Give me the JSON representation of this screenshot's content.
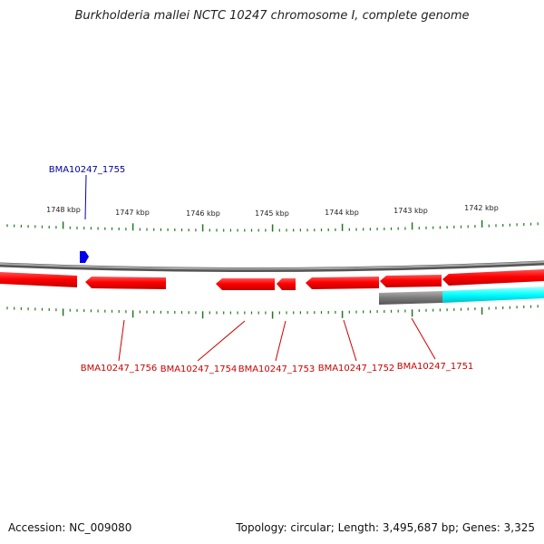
{
  "title": "Burkholderia mallei NCTC 10247 chromosome I, complete genome",
  "footer": {
    "accession": "Accession: NC_009080",
    "summary": "Topology: circular; Length: 3,495,687 bp; Genes: 3,325"
  },
  "kbp_labels": [
    "1748 kbp",
    "1747 kbp",
    "1746 kbp",
    "1745 kbp",
    "1744 kbp",
    "1743 kbp",
    "1742 kbp"
  ],
  "gene_labels": {
    "top": "BMA10247_1755",
    "bottom": [
      "BMA10247_1756",
      "BMA10247_1754",
      "BMA10247_1753",
      "BMA10247_1752",
      "BMA10247_1751"
    ]
  },
  "colors": {
    "forward_gene": "#0000cc",
    "reverse_gene": "#ee0000",
    "other_feature": "#00e5ee",
    "backbone": "#888888",
    "ticks": "#227722"
  }
}
